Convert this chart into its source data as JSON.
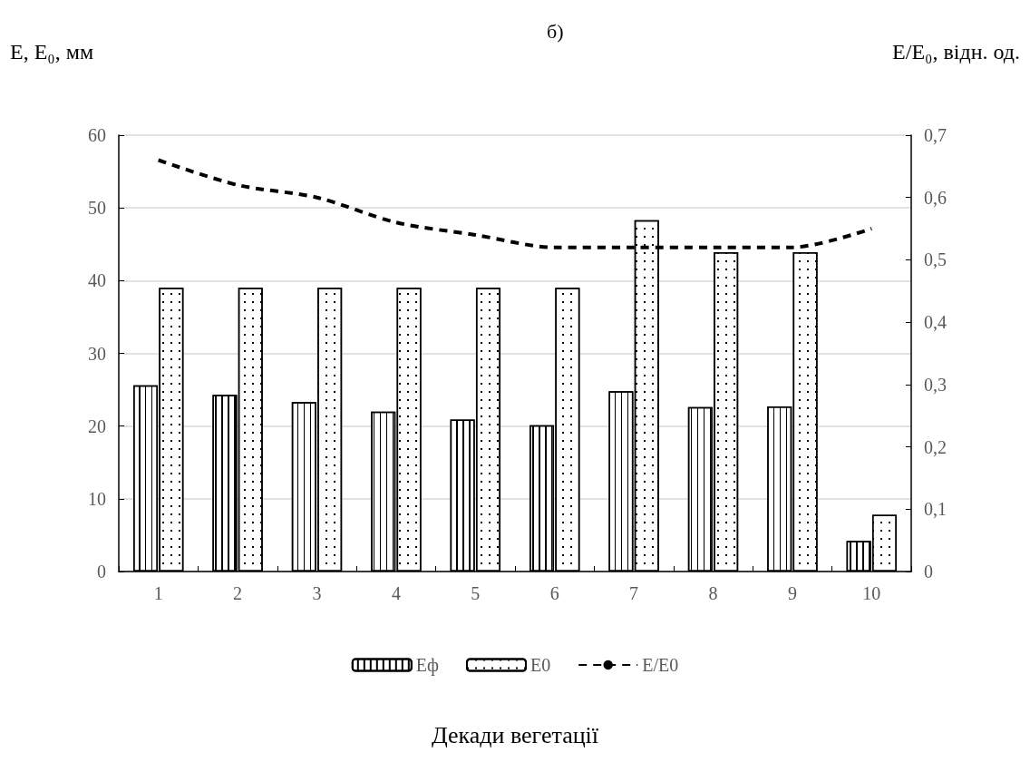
{
  "chart_data": {
    "type": "bar",
    "title": "б)",
    "annotations": [
      "Декади вегетації"
    ],
    "ylabel": "E, E₀, мм",
    "y2label": "E/E₀, відн. од.",
    "categories": [
      "1",
      "2",
      "3",
      "4",
      "5",
      "6",
      "7",
      "8",
      "9",
      "10"
    ],
    "series": [
      {
        "name": "Eф",
        "color": "#000000",
        "values": [
          25.6,
          24.3,
          23.3,
          22.0,
          20.9,
          20.1,
          24.8,
          22.6,
          22.7,
          4.2
        ]
      },
      {
        "name": "E0",
        "color": "#000000",
        "values": [
          39.0,
          39.0,
          39.0,
          39.0,
          39.0,
          39.0,
          48.3,
          43.9,
          43.9,
          7.8
        ]
      },
      {
        "name": "E/E0",
        "type": "line",
        "axis": "y2",
        "color": "#000000",
        "line_style": "dashed",
        "marker": "none",
        "values": [
          0.66,
          0.62,
          0.6,
          0.56,
          0.54,
          0.52,
          0.52,
          0.52,
          0.52,
          0.55
        ]
      }
    ],
    "ylim": [
      0,
      60
    ],
    "yticks": [
      0,
      10,
      20,
      30,
      40,
      50,
      60
    ],
    "y2lim": [
      0,
      0.7
    ],
    "y2ticks": [
      0,
      {
        "value": 0.1,
        "label": "0,1"
      },
      {
        "value": 0.2,
        "label": "0,2"
      },
      {
        "value": 0.3,
        "label": "0,3"
      },
      {
        "value": 0.4,
        "label": "0,4"
      },
      {
        "value": 0.5,
        "label": "0,5"
      },
      {
        "value": 0.6,
        "label": "0,6"
      },
      {
        "value": 0.7,
        "label": "0,7"
      }
    ],
    "grid": "y",
    "legend": "bottom"
  }
}
